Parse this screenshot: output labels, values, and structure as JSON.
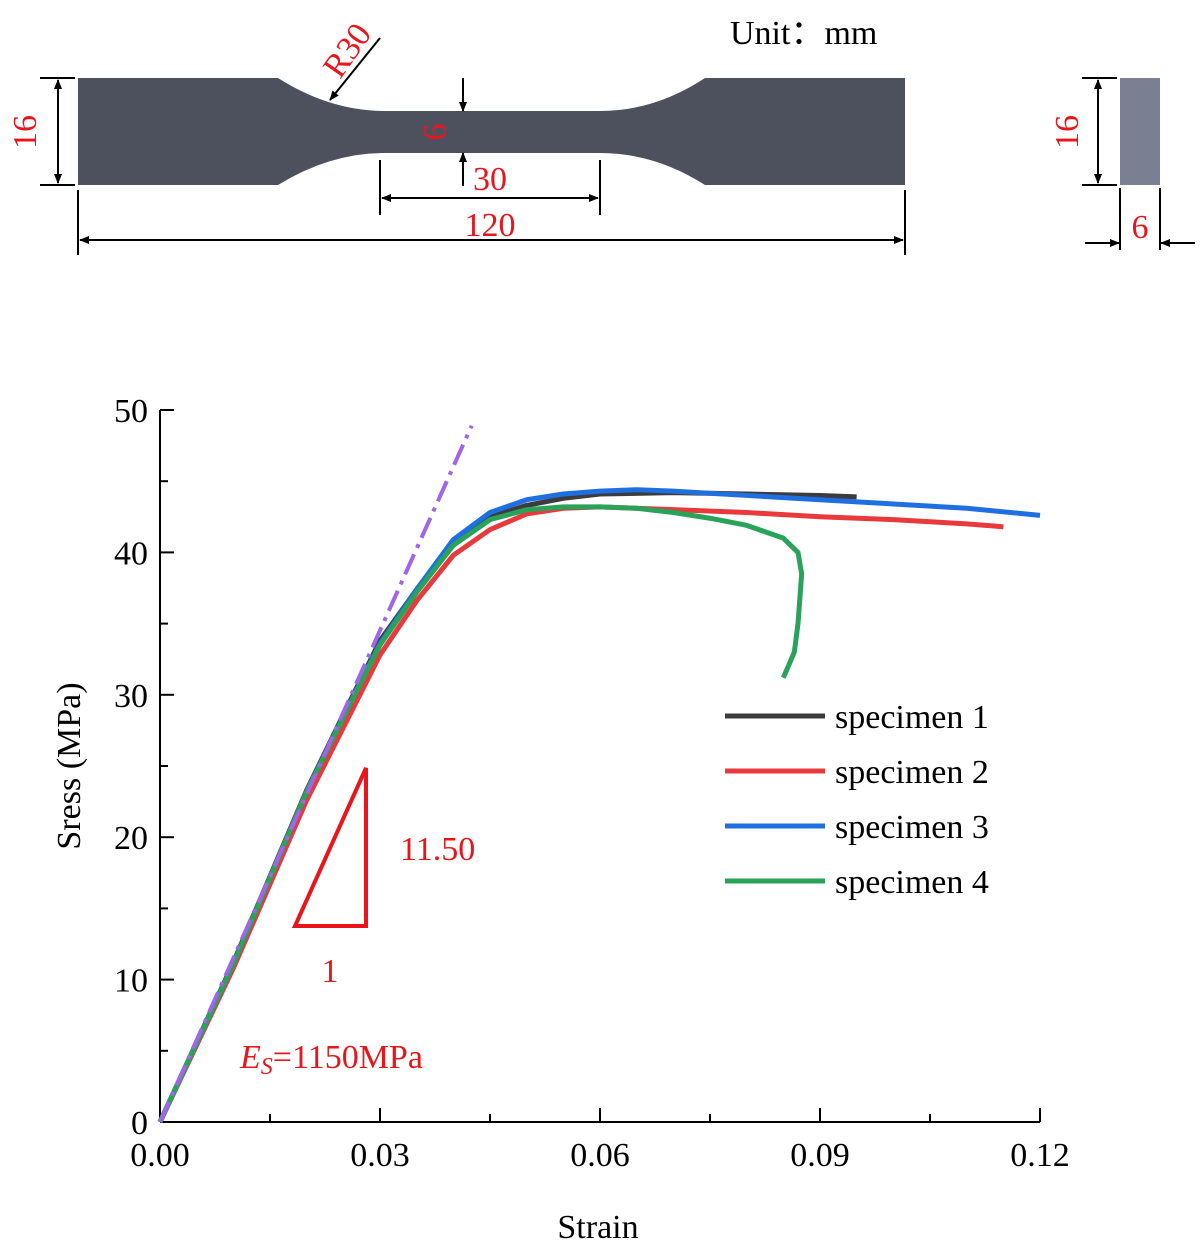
{
  "drawing": {
    "unit": "Unit：mm",
    "radius": "R30",
    "height": "16",
    "gauge_width": "6",
    "gauge_length": "30",
    "total_length": "120",
    "side_height": "16",
    "thickness": "6"
  },
  "chart_data": {
    "type": "line",
    "x_label": "Strain",
    "y_label": "Sress (MPa)",
    "xlim": [
      0,
      0.12
    ],
    "ylim": [
      0,
      50
    ],
    "xticks": [
      {
        "value": 0,
        "label": "0.00"
      },
      0.03,
      0.06,
      0.09,
      0.12
    ],
    "yticks": [
      0,
      10,
      20,
      30,
      40,
      50
    ],
    "xminorticks": [
      0.015,
      0.045,
      0.075,
      0.105
    ],
    "yminorticks": [
      5,
      15,
      25,
      35,
      45
    ],
    "legend": "right",
    "series": [
      {
        "name": "specimen 1",
        "color": "#3c3c3c",
        "x": [
          0,
          0.01,
          0.02,
          0.025,
          0.03,
          0.035,
          0.04,
          0.045,
          0.05,
          0.055,
          0.06,
          0.07,
          0.08,
          0.09,
          0.095
        ],
        "values": [
          0,
          11.2,
          23.3,
          28.6,
          33.8,
          37.4,
          40.7,
          42.5,
          43.3,
          43.8,
          44.1,
          44.2,
          44.1,
          44.0,
          43.9
        ]
      },
      {
        "name": "specimen 2",
        "color": "#e8393c",
        "x": [
          0,
          0.01,
          0.02,
          0.03,
          0.035,
          0.04,
          0.045,
          0.05,
          0.055,
          0.06,
          0.07,
          0.08,
          0.09,
          0.1,
          0.11,
          0.115
        ],
        "values": [
          0,
          10.8,
          22.6,
          32.8,
          36.6,
          39.8,
          41.6,
          42.7,
          43.1,
          43.2,
          43.0,
          42.8,
          42.5,
          42.3,
          42.0,
          41.8
        ]
      },
      {
        "name": "specimen 3",
        "color": "#1f6fe0",
        "x": [
          0,
          0.01,
          0.02,
          0.025,
          0.03,
          0.035,
          0.04,
          0.045,
          0.05,
          0.055,
          0.06,
          0.065,
          0.07,
          0.08,
          0.09,
          0.1,
          0.11,
          0.12
        ],
        "values": [
          0,
          11.1,
          23.2,
          28.5,
          33.6,
          37.4,
          40.9,
          42.8,
          43.7,
          44.1,
          44.3,
          44.4,
          44.3,
          44.0,
          43.7,
          43.4,
          43.1,
          42.6
        ]
      },
      {
        "name": "specimen 4",
        "color": "#2aa35a",
        "x": [
          0,
          0.01,
          0.02,
          0.025,
          0.03,
          0.035,
          0.04,
          0.045,
          0.05,
          0.055,
          0.06,
          0.065,
          0.07,
          0.075,
          0.08,
          0.085,
          0.087,
          0.0875,
          0.087,
          0.0865,
          0.085
        ],
        "values": [
          0,
          11.1,
          23.2,
          28.4,
          33.5,
          37.2,
          40.5,
          42.3,
          43.0,
          43.2,
          43.2,
          43.1,
          42.8,
          42.4,
          41.9,
          41.0,
          40.0,
          38.5,
          35.0,
          33.0,
          31.2
        ]
      }
    ],
    "reference_line": {
      "color": "#a066e8",
      "x": [
        0,
        0.0425
      ],
      "values": [
        0,
        48.9
      ]
    },
    "slope_rise": "11.50",
    "slope_run": "1",
    "modulus_symbol": "E",
    "modulus_subscript": "S",
    "modulus_text": "=1150MPa"
  }
}
